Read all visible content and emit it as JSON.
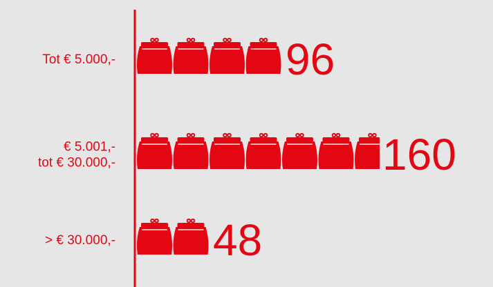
{
  "colors": {
    "background": "#e6e6e6",
    "accent": "#e30613"
  },
  "chart_data": {
    "type": "bar",
    "pictogram": true,
    "icon": "coin-purse-icon",
    "categories": [
      [
        "Tot € 5.000,-"
      ],
      [
        "€ 5.001,-",
        "tot € 30.000,-"
      ],
      [
        "> € 30.000,-"
      ]
    ],
    "values": [
      96,
      160,
      48
    ],
    "value_labels": [
      "96",
      "160",
      "48"
    ],
    "title": "",
    "xlabel": "",
    "ylabel": "",
    "orientation": "horizontal",
    "grid": false
  }
}
